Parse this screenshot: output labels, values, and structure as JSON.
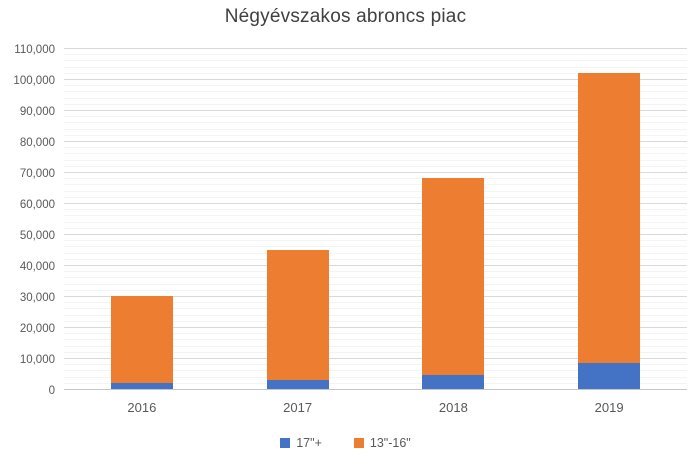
{
  "chart_data": {
    "type": "bar",
    "stacked": true,
    "title": "Négyévszakos abroncs piac",
    "categories": [
      "2016",
      "2017",
      "2018",
      "2019"
    ],
    "series": [
      {
        "name": "17\"+",
        "color": "#4472C4",
        "values": [
          2000,
          3000,
          4500,
          8500
        ]
      },
      {
        "name": "13\"-16\"",
        "color": "#ED7D31",
        "values": [
          28000,
          42000,
          63500,
          93500
        ]
      }
    ],
    "totals": [
      30000,
      45000,
      68000,
      102000
    ],
    "xlabel": "",
    "ylabel": "",
    "ylim": [
      0,
      110000
    ],
    "y_major_step": 10000,
    "y_minor_step": 2000,
    "y_tick_labels": [
      "0",
      "10,000",
      "20,000",
      "30,000",
      "40,000",
      "50,000",
      "60,000",
      "70,000",
      "80,000",
      "90,000",
      "100,000",
      "110,000"
    ],
    "grid": true,
    "legend_position": "bottom"
  },
  "colors": {
    "title_text": "#404040",
    "axis_text": "#595959",
    "major_gridline": "#d9d9d9",
    "minor_gridline": "#f4f4f4",
    "axis_line": "#c6c6c6",
    "background": "#ffffff"
  }
}
